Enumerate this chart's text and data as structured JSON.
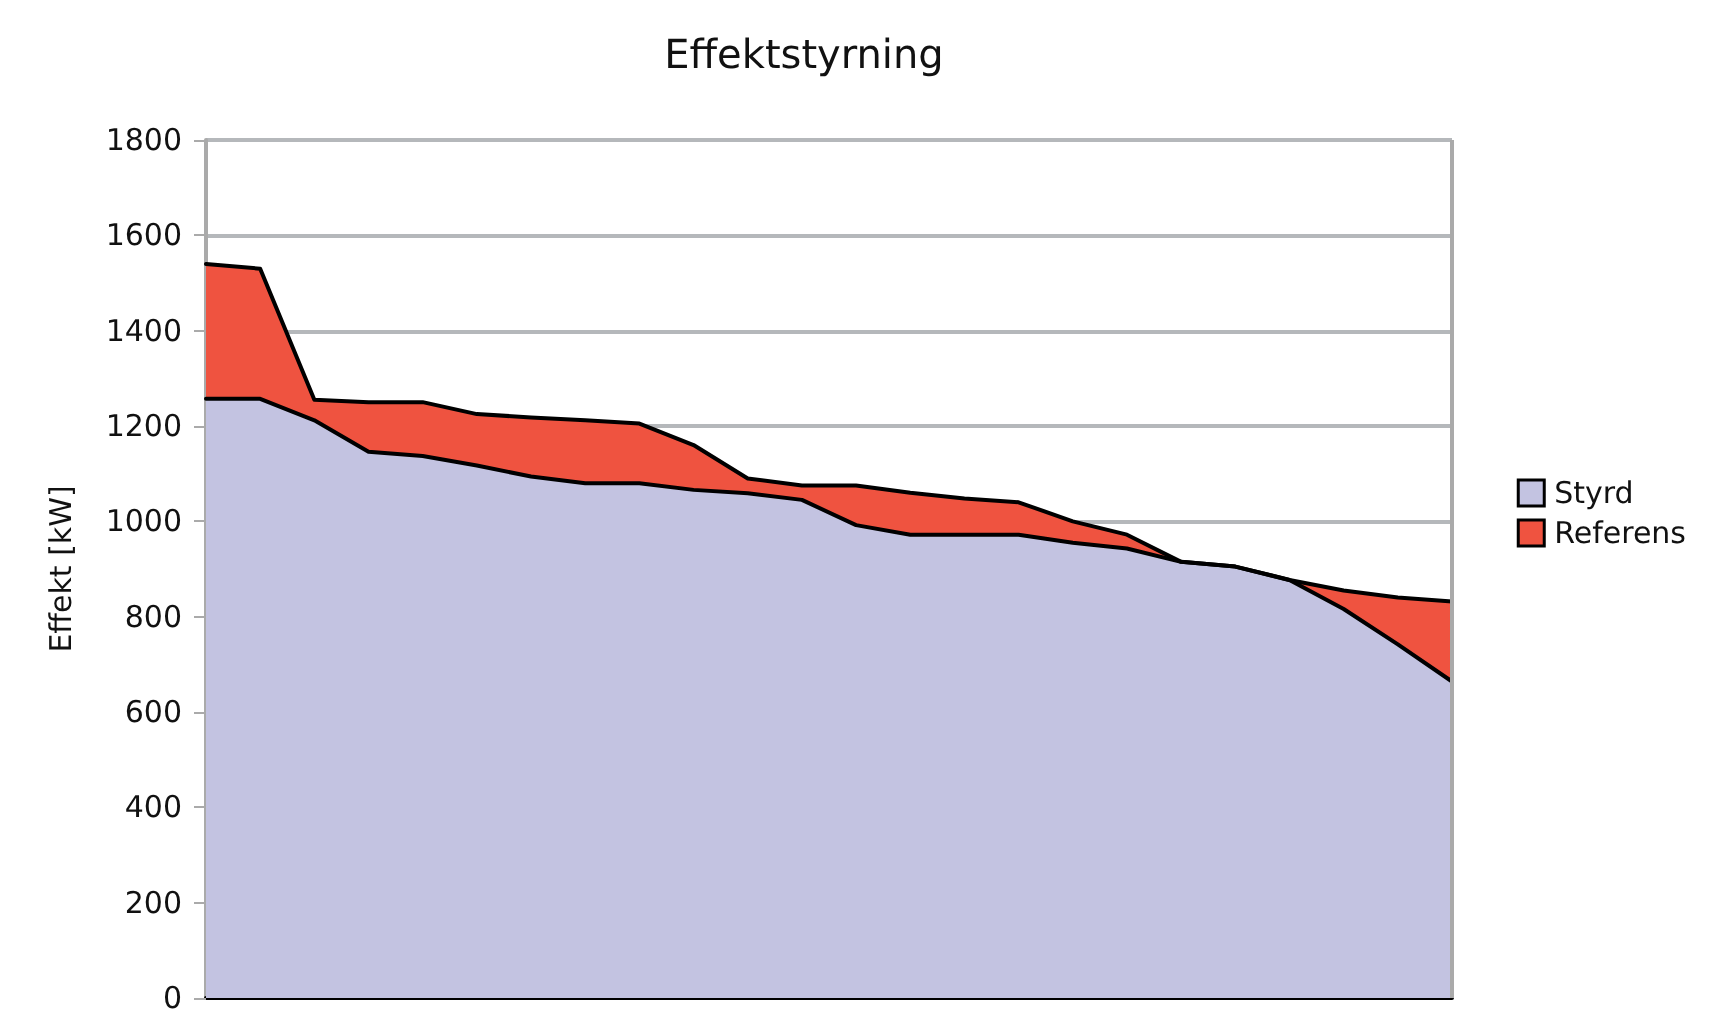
{
  "chart_data": {
    "type": "area",
    "title": "Effektstyrning",
    "ylabel": "Effekt [kW]",
    "categories": [
      null,
      null,
      null,
      null,
      null,
      null,
      null,
      null,
      null,
      null,
      null,
      null,
      null,
      null,
      null,
      null,
      null,
      null,
      null,
      null,
      null,
      null,
      null,
      null
    ],
    "series": [
      {
        "name": "Referens",
        "color": "#ef5340",
        "values": [
          1540,
          1530,
          1255,
          1250,
          1250,
          1225,
          1218,
          1212,
          1205,
          1160,
          1090,
          1075,
          1075,
          1060,
          1048,
          1040,
          1000,
          972,
          915,
          905,
          877,
          855,
          840,
          832
        ]
      },
      {
        "name": "Styrd",
        "color": "#c3c3e1",
        "values": [
          1257,
          1257,
          1212,
          1146,
          1137,
          1117,
          1094,
          1080,
          1080,
          1066,
          1059,
          1045,
          992,
          972,
          972,
          972,
          955,
          943,
          915,
          905,
          877,
          816,
          742,
          664
        ]
      }
    ],
    "ylim": [
      0,
      1800
    ],
    "yticks": [
      0,
      200,
      400,
      600,
      800,
      1000,
      1200,
      1400,
      1600,
      1800
    ],
    "grid": "y",
    "legend": "right",
    "marker": "none",
    "line_style": "solid"
  }
}
